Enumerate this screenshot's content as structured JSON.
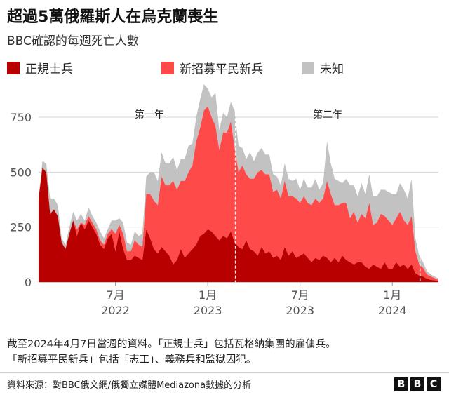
{
  "title": "超過5萬俄羅斯人在烏克蘭喪生",
  "subtitle": "BBC確認的每週死亡人數",
  "colors": {
    "regular": "#b80000",
    "recruits": "#ff4a4a",
    "unknown": "#c2c2c2",
    "grid": "#d6d6d6",
    "axis_text": "#555555"
  },
  "legend": [
    {
      "label": "正規士兵",
      "color": "#b80000"
    },
    {
      "label": "新招募平民新兵",
      "color": "#ff4a4a"
    },
    {
      "label": "未知",
      "color": "#c2c2c2"
    }
  ],
  "chart_data": {
    "type": "area",
    "stacked": true,
    "x_unit": "months since 2022-02",
    "ylim": [
      0,
      900
    ],
    "yticks": [
      0,
      250,
      500,
      750
    ],
    "xticks": [
      {
        "value": 5,
        "month": "7月",
        "year": "2022"
      },
      {
        "value": 11,
        "month": "1月",
        "year": "2023"
      },
      {
        "value": 17,
        "month": "7月",
        "year": "2023"
      },
      {
        "value": 23,
        "month": "1月",
        "year": "2024"
      }
    ],
    "dividers": [
      {
        "x": 12.8,
        "label": "第一年"
      },
      {
        "x": 24.8,
        "label": "第二年"
      }
    ],
    "annotation_positions": [
      7.2,
      18.8
    ],
    "x": [
      0.0,
      0.25,
      0.5,
      0.75,
      1.0,
      1.25,
      1.5,
      1.75,
      2.0,
      2.25,
      2.5,
      2.75,
      3.0,
      3.25,
      3.5,
      3.75,
      4.0,
      4.25,
      4.5,
      4.75,
      5.0,
      5.25,
      5.5,
      5.75,
      6.0,
      6.25,
      6.5,
      6.75,
      7.0,
      7.25,
      7.5,
      7.75,
      8.0,
      8.25,
      8.5,
      8.75,
      9.0,
      9.25,
      9.5,
      9.75,
      10.0,
      10.25,
      10.5,
      10.75,
      11.0,
      11.25,
      11.5,
      11.75,
      12.0,
      12.25,
      12.5,
      12.75,
      13.0,
      13.25,
      13.5,
      13.75,
      14.0,
      14.25,
      14.5,
      14.75,
      15.0,
      15.25,
      15.5,
      15.75,
      16.0,
      16.25,
      16.5,
      16.75,
      17.0,
      17.25,
      17.5,
      17.75,
      18.0,
      18.25,
      18.5,
      18.75,
      19.0,
      19.25,
      19.5,
      19.75,
      20.0,
      20.25,
      20.5,
      20.75,
      21.0,
      21.25,
      21.5,
      21.75,
      22.0,
      22.25,
      22.5,
      22.75,
      23.0,
      23.25,
      23.5,
      23.75,
      24.0,
      24.25,
      24.5,
      24.75,
      25.0,
      25.25,
      25.5,
      25.75,
      26.0
    ],
    "series": [
      {
        "name": "正規士兵",
        "values": [
          380,
          520,
          500,
          310,
          330,
          300,
          180,
          150,
          220,
          280,
          210,
          270,
          240,
          280,
          250,
          220,
          170,
          150,
          200,
          220,
          140,
          230,
          150,
          100,
          100,
          120,
          110,
          100,
          240,
          200,
          150,
          130,
          160,
          140,
          120,
          80,
          100,
          150,
          110,
          130,
          150,
          170,
          210,
          220,
          240,
          230,
          210,
          190,
          210,
          200,
          230,
          180,
          160,
          150,
          190,
          150,
          140,
          120,
          160,
          130,
          140,
          110,
          120,
          100,
          160,
          120,
          140,
          110,
          120,
          130,
          110,
          90,
          110,
          100,
          120,
          110,
          90,
          110,
          90,
          120,
          100,
          90,
          80,
          90,
          90,
          70,
          60,
          80,
          70,
          60,
          90,
          60,
          60,
          90,
          70,
          80,
          60,
          80,
          40,
          30,
          25,
          15,
          10,
          8,
          5
        ]
      },
      {
        "name": "新招募平民新兵",
        "values": [
          0,
          0,
          0,
          0,
          0,
          0,
          0,
          0,
          0,
          0,
          30,
          0,
          20,
          20,
          20,
          20,
          20,
          20,
          20,
          20,
          80,
          30,
          70,
          40,
          40,
          70,
          60,
          60,
          160,
          200,
          220,
          220,
          320,
          300,
          320,
          380,
          320,
          310,
          350,
          370,
          380,
          470,
          490,
          560,
          560,
          520,
          500,
          410,
          470,
          480,
          500,
          430,
          340,
          380,
          300,
          320,
          330,
          380,
          350,
          360,
          350,
          300,
          300,
          280,
          300,
          270,
          250,
          270,
          240,
          260,
          250,
          260,
          270,
          260,
          260,
          350,
          310,
          240,
          260,
          240,
          260,
          200,
          240,
          180,
          220,
          220,
          300,
          180,
          200,
          250,
          210,
          220,
          200,
          200,
          250,
          200,
          200,
          220,
          100,
          50,
          40,
          20,
          15,
          10,
          5
        ]
      },
      {
        "name": "未知",
        "values": [
          0,
          30,
          40,
          70,
          50,
          50,
          20,
          20,
          30,
          40,
          40,
          40,
          20,
          40,
          30,
          30,
          40,
          30,
          20,
          40,
          60,
          30,
          50,
          40,
          30,
          40,
          40,
          60,
          80,
          100,
          130,
          110,
          110,
          100,
          100,
          110,
          90,
          100,
          100,
          120,
          100,
          110,
          130,
          120,
          80,
          90,
          150,
          90,
          90,
          70,
          90,
          170,
          120,
          80,
          70,
          120,
          80,
          90,
          100,
          90,
          90,
          80,
          60,
          60,
          80,
          80,
          70,
          90,
          60,
          80,
          70,
          80,
          90,
          60,
          70,
          180,
          140,
          120,
          110,
          90,
          110,
          150,
          120,
          120,
          140,
          110,
          130,
          130,
          120,
          110,
          120,
          130,
          140,
          110,
          130,
          140,
          120,
          170,
          60,
          40,
          25,
          15,
          10,
          7,
          5
        ]
      }
    ]
  },
  "note": {
    "line1": "截至2024年4月7日當週的資料。「正規士兵」包括瓦格納集團的雇傭兵。",
    "line2": "「新招募平民新兵」包括「志工」、義務兵和監獄囚犯。"
  },
  "source": "資料來源：對BBC俄文網/俄獨立媒體Mediazona數據的分析",
  "logo": [
    "B",
    "B",
    "C"
  ]
}
